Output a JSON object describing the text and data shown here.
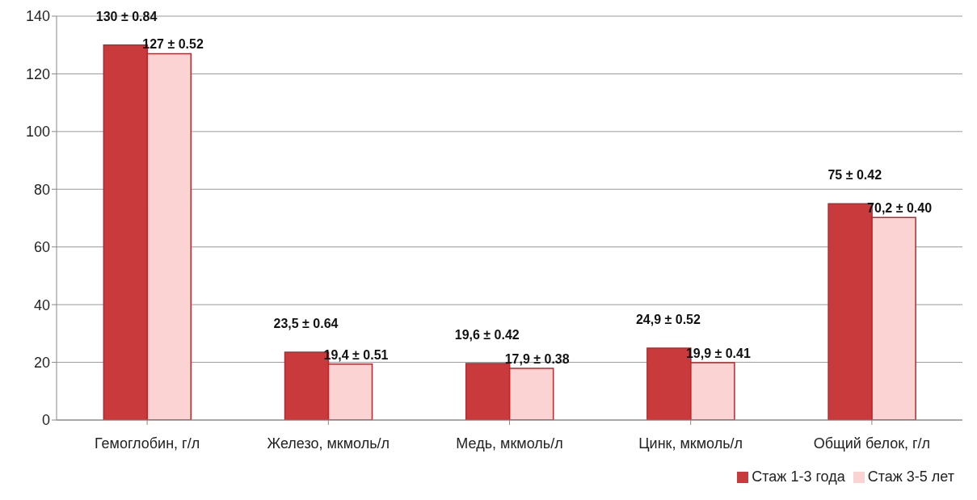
{
  "chart_data": {
    "type": "bar",
    "categories": [
      "Гемоглобин, г/л",
      "Железо, мкмоль/л",
      "Медь, мкмоль/л",
      "Цинк, мкмоль/л",
      "Общий белок, г/л"
    ],
    "series": [
      {
        "name": "Стаж 1-3 года",
        "color": "#c93a3c",
        "values": [
          130,
          23.5,
          19.6,
          24.9,
          75
        ],
        "value_labels": [
          "130 ± 0.84",
          "23,5 ± 0.64",
          "19,6 ± 0.42",
          "24,9 ± 0.52",
          "75 ± 0.42"
        ]
      },
      {
        "name": "Стаж 3-5 лет",
        "color": "#fbd3d3",
        "values": [
          127,
          19.4,
          17.9,
          19.9,
          70.2
        ],
        "value_labels": [
          "127 ± 0.52",
          "19,4 ± 0.51",
          "17,9 ± 0.38",
          "19,9 ± 0.41",
          "70,2 ± 0.40"
        ]
      }
    ],
    "ylim": [
      0,
      140
    ],
    "yticks": [
      0,
      20,
      40,
      60,
      80,
      100,
      120,
      140
    ],
    "grid": "y",
    "legend": "bottom right"
  }
}
